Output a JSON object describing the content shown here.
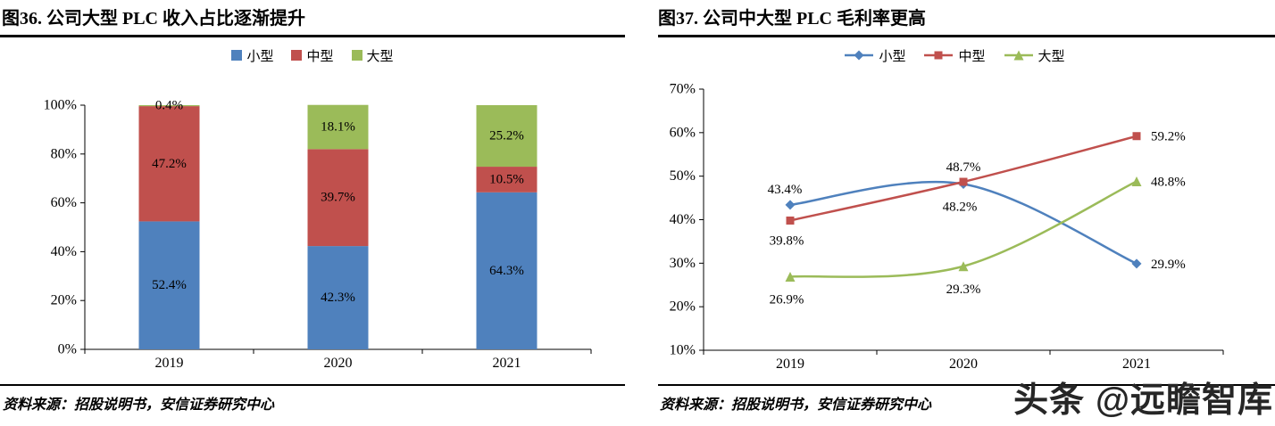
{
  "watermark": {
    "text": "头条 @远瞻智库"
  },
  "figure36": {
    "title": "图36. 公司大型 PLC 收入占比逐渐提升",
    "source": "资料来源：招股说明书，安信证券研究中心"
  },
  "figure37": {
    "title": "图37. 公司中大型 PLC 毛利率更高",
    "source": "资料来源：招股说明书，安信证券研究中心"
  },
  "chart_data": [
    {
      "type": "bar",
      "stacked": true,
      "title": "图36. 公司大型 PLC 收入占比逐渐提升",
      "categories": [
        "2019",
        "2020",
        "2021"
      ],
      "series": [
        {
          "name": "小型",
          "color": "#4F81BD",
          "values": [
            52.4,
            42.3,
            64.3
          ]
        },
        {
          "name": "中型",
          "color": "#C0504D",
          "values": [
            47.2,
            39.7,
            10.5
          ]
        },
        {
          "name": "大型",
          "color": "#9BBB59",
          "values": [
            0.4,
            18.1,
            25.2
          ]
        }
      ],
      "xlabel": "",
      "ylabel": "",
      "ylim": [
        0,
        100
      ],
      "ytick_step": 20,
      "ytick_labels": [
        "0%",
        "20%",
        "40%",
        "60%",
        "80%",
        "100%"
      ],
      "grid": false,
      "legend_position": "top",
      "value_suffix": "%"
    },
    {
      "type": "line",
      "title": "图37. 公司中大型 PLC 毛利率更高",
      "categories": [
        "2019",
        "2020",
        "2021"
      ],
      "series": [
        {
          "name": "小型",
          "color": "#4F81BD",
          "marker": "diamond",
          "values": [
            43.4,
            48.2,
            29.9
          ],
          "label_offsets": [
            [
              -6,
              -13
            ],
            [
              -4,
              30
            ],
            [
              16,
              5
            ]
          ],
          "label_anchors": [
            "middle",
            "middle",
            "start"
          ]
        },
        {
          "name": "中型",
          "color": "#C0504D",
          "marker": "square",
          "values": [
            39.8,
            48.7,
            59.2
          ],
          "label_offsets": [
            [
              -4,
              27
            ],
            [
              0,
              -12
            ],
            [
              16,
              5
            ]
          ],
          "label_anchors": [
            "middle",
            "middle",
            "start"
          ]
        },
        {
          "name": "大型",
          "color": "#9BBB59",
          "marker": "triangle",
          "values": [
            26.9,
            29.3,
            48.8
          ],
          "label_offsets": [
            [
              -4,
              30
            ],
            [
              0,
              30
            ],
            [
              16,
              5
            ]
          ],
          "label_anchors": [
            "middle",
            "middle",
            "start"
          ]
        }
      ],
      "xlabel": "",
      "ylabel": "",
      "ylim": [
        10,
        70
      ],
      "ytick_step": 10,
      "ytick_labels": [
        "10%",
        "20%",
        "30%",
        "40%",
        "50%",
        "60%",
        "70%"
      ],
      "grid": false,
      "smooth": true,
      "legend_position": "top",
      "value_suffix": "%"
    }
  ]
}
